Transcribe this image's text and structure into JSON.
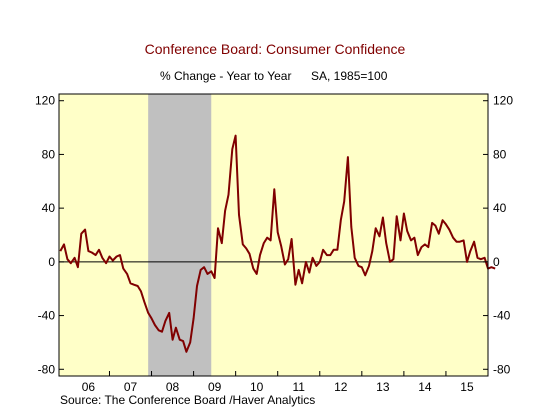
{
  "chart_data": {
    "type": "line",
    "title": "Conference Board: Consumer Confidence",
    "subtitle_left": "% Change - Year to Year",
    "subtitle_right": "SA, 1985=100",
    "source": "Source:  The Conference Board /Haver Analytics",
    "xlabel": "",
    "ylabel": "",
    "ylim": [
      -85,
      125
    ],
    "yticks": [
      120,
      80,
      40,
      0,
      -40,
      -80
    ],
    "ytick_labels": [
      "120",
      "80",
      "40",
      "0",
      "-40",
      "-80"
    ],
    "xlim": [
      2005.8,
      2016.0
    ],
    "xtick_labels": [
      "06",
      "07",
      "08",
      "09",
      "10",
      "11",
      "12",
      "13",
      "14",
      "15"
    ],
    "xtick_positions": [
      2006.5,
      2007.5,
      2008.5,
      2009.5,
      2010.5,
      2011.5,
      2012.5,
      2013.5,
      2014.5,
      2015.5
    ],
    "year_boundaries": [
      2007,
      2008,
      2009,
      2010,
      2011,
      2012,
      2013,
      2014,
      2015
    ],
    "recession": [
      2007.92,
      2009.42
    ],
    "grid": false,
    "legend": "none",
    "colors": {
      "background_plot": "#ffffc8",
      "recession": "#c0c0c0",
      "line": "#800000",
      "zero_line": "#000000",
      "title": "#800000",
      "subtitle": "#000000"
    },
    "series": [
      {
        "values": [
          [
            2005.83,
            8
          ],
          [
            2005.92,
            13
          ],
          [
            2006.0,
            2
          ],
          [
            2006.08,
            -1
          ],
          [
            2006.17,
            3
          ],
          [
            2006.25,
            -4
          ],
          [
            2006.33,
            21
          ],
          [
            2006.42,
            24
          ],
          [
            2006.5,
            8
          ],
          [
            2006.58,
            7
          ],
          [
            2006.67,
            5
          ],
          [
            2006.75,
            9
          ],
          [
            2006.83,
            3
          ],
          [
            2006.92,
            -1
          ],
          [
            2007.0,
            4
          ],
          [
            2007.08,
            1
          ],
          [
            2007.17,
            4
          ],
          [
            2007.25,
            5
          ],
          [
            2007.33,
            -5
          ],
          [
            2007.42,
            -9
          ],
          [
            2007.5,
            -16
          ],
          [
            2007.58,
            -17
          ],
          [
            2007.67,
            -18
          ],
          [
            2007.75,
            -22
          ],
          [
            2007.83,
            -30
          ],
          [
            2007.92,
            -38
          ],
          [
            2008.0,
            -42
          ],
          [
            2008.08,
            -47
          ],
          [
            2008.17,
            -51
          ],
          [
            2008.25,
            -52
          ],
          [
            2008.33,
            -44
          ],
          [
            2008.42,
            -38
          ],
          [
            2008.5,
            -58
          ],
          [
            2008.58,
            -49
          ],
          [
            2008.67,
            -58
          ],
          [
            2008.75,
            -59
          ],
          [
            2008.83,
            -67
          ],
          [
            2008.92,
            -60
          ],
          [
            2009.0,
            -42
          ],
          [
            2009.08,
            -18
          ],
          [
            2009.17,
            -6
          ],
          [
            2009.25,
            -4
          ],
          [
            2009.33,
            -9
          ],
          [
            2009.42,
            -7
          ],
          [
            2009.5,
            -12
          ],
          [
            2009.58,
            25
          ],
          [
            2009.67,
            14
          ],
          [
            2009.75,
            38
          ],
          [
            2009.83,
            50
          ],
          [
            2009.92,
            84
          ],
          [
            2010.0,
            94
          ],
          [
            2010.08,
            35
          ],
          [
            2010.17,
            13
          ],
          [
            2010.25,
            10
          ],
          [
            2010.33,
            6
          ],
          [
            2010.42,
            -5
          ],
          [
            2010.5,
            -9
          ],
          [
            2010.58,
            5
          ],
          [
            2010.67,
            14
          ],
          [
            2010.75,
            18
          ],
          [
            2010.83,
            16
          ],
          [
            2010.92,
            54
          ],
          [
            2011.0,
            22
          ],
          [
            2011.08,
            12
          ],
          [
            2011.17,
            -2
          ],
          [
            2011.25,
            2
          ],
          [
            2011.33,
            17
          ],
          [
            2011.42,
            -17
          ],
          [
            2011.5,
            -6
          ],
          [
            2011.58,
            -16
          ],
          [
            2011.67,
            0
          ],
          [
            2011.75,
            -8
          ],
          [
            2011.83,
            3
          ],
          [
            2011.92,
            -3
          ],
          [
            2012.0,
            0
          ],
          [
            2012.08,
            9
          ],
          [
            2012.17,
            5
          ],
          [
            2012.25,
            5
          ],
          [
            2012.33,
            9
          ],
          [
            2012.42,
            9
          ],
          [
            2012.5,
            31
          ],
          [
            2012.58,
            45
          ],
          [
            2012.67,
            78
          ],
          [
            2012.75,
            26
          ],
          [
            2012.83,
            3
          ],
          [
            2012.92,
            -3
          ],
          [
            2013.0,
            -4
          ],
          [
            2013.08,
            -10
          ],
          [
            2013.17,
            -3
          ],
          [
            2013.25,
            8
          ],
          [
            2013.33,
            25
          ],
          [
            2013.42,
            19
          ],
          [
            2013.5,
            33
          ],
          [
            2013.58,
            14
          ],
          [
            2013.67,
            0
          ],
          [
            2013.75,
            2
          ],
          [
            2013.83,
            34
          ],
          [
            2013.92,
            16
          ],
          [
            2014.0,
            36
          ],
          [
            2014.08,
            23
          ],
          [
            2014.17,
            16
          ],
          [
            2014.25,
            18
          ],
          [
            2014.33,
            5
          ],
          [
            2014.42,
            11
          ],
          [
            2014.5,
            13
          ],
          [
            2014.58,
            11
          ],
          [
            2014.67,
            29
          ],
          [
            2014.75,
            27
          ],
          [
            2014.83,
            21
          ],
          [
            2014.92,
            31
          ],
          [
            2015.0,
            28
          ],
          [
            2015.08,
            24
          ],
          [
            2015.17,
            18
          ],
          [
            2015.25,
            15
          ],
          [
            2015.33,
            15
          ],
          [
            2015.42,
            16
          ],
          [
            2015.5,
            0
          ],
          [
            2015.58,
            8
          ],
          [
            2015.67,
            15
          ],
          [
            2015.75,
            3
          ],
          [
            2015.83,
            2
          ],
          [
            2015.92,
            3
          ],
          [
            2016.0,
            -5
          ],
          [
            2016.08,
            -4
          ],
          [
            2016.17,
            -5
          ]
        ]
      }
    ]
  }
}
